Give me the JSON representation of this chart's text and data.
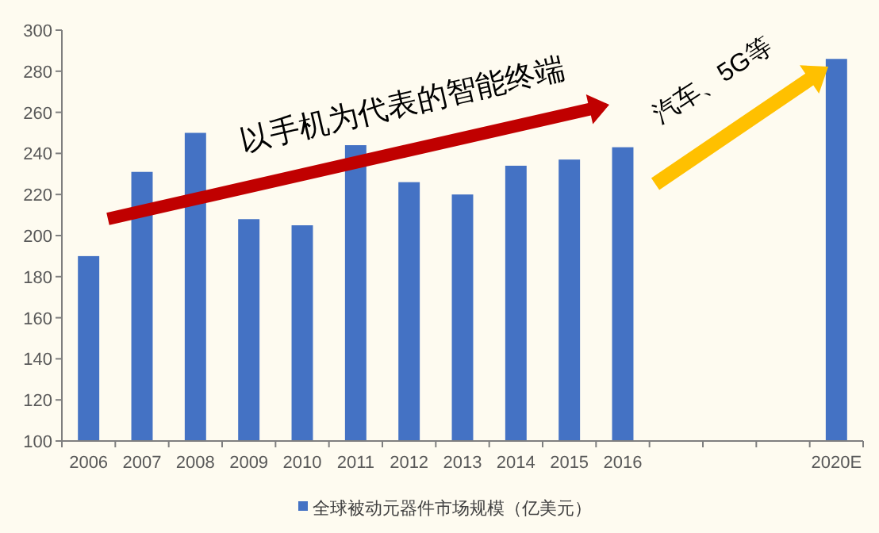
{
  "chart_data": {
    "type": "bar",
    "categories": [
      "2006",
      "2007",
      "2008",
      "2009",
      "2010",
      "2011",
      "2012",
      "2013",
      "2014",
      "2015",
      "2016",
      null,
      null,
      null,
      "2020E"
    ],
    "series": [
      {
        "name": "全球被动元器件市场规模（亿美元）",
        "color": "#4472c4",
        "values": [
          190,
          231,
          250,
          208,
          205,
          244,
          226,
          220,
          234,
          237,
          243,
          null,
          null,
          null,
          286
        ]
      }
    ],
    "ylim": [
      100,
      300
    ],
    "yticks": [
      100,
      120,
      140,
      160,
      180,
      200,
      220,
      240,
      260,
      280,
      300
    ],
    "annotations": [
      "以手机为代表的智能终端",
      "汽车、5G等"
    ],
    "legend": "bottom",
    "grid": false
  }
}
